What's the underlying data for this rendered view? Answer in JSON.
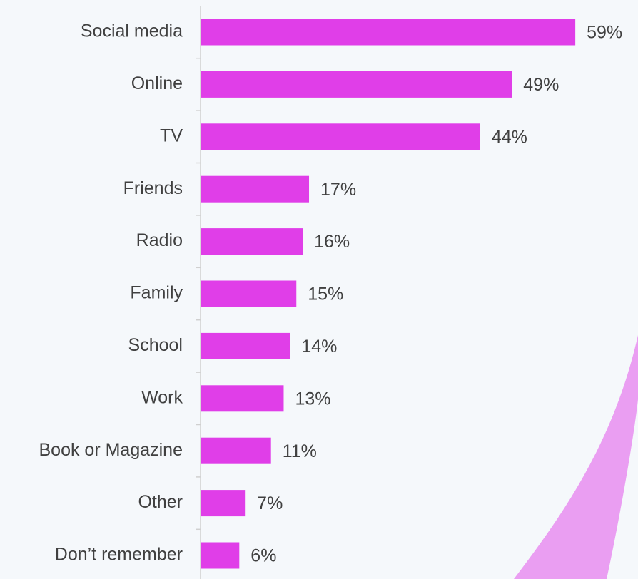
{
  "chart_data": {
    "type": "bar",
    "orientation": "horizontal",
    "categories": [
      "Social media",
      "Online",
      "TV",
      "Friends",
      "Radio",
      "Family",
      "School",
      "Work",
      "Book or Magazine",
      "Other",
      "Don’t remember"
    ],
    "values": [
      59,
      49,
      44,
      17,
      16,
      15,
      14,
      13,
      11,
      7,
      6
    ],
    "value_labels": [
      "59%",
      "49%",
      "44%",
      "17%",
      "16%",
      "15%",
      "14%",
      "13%",
      "11%",
      "7%",
      "6%"
    ],
    "color": "#e03ee8",
    "xlim": [
      0,
      60
    ]
  }
}
